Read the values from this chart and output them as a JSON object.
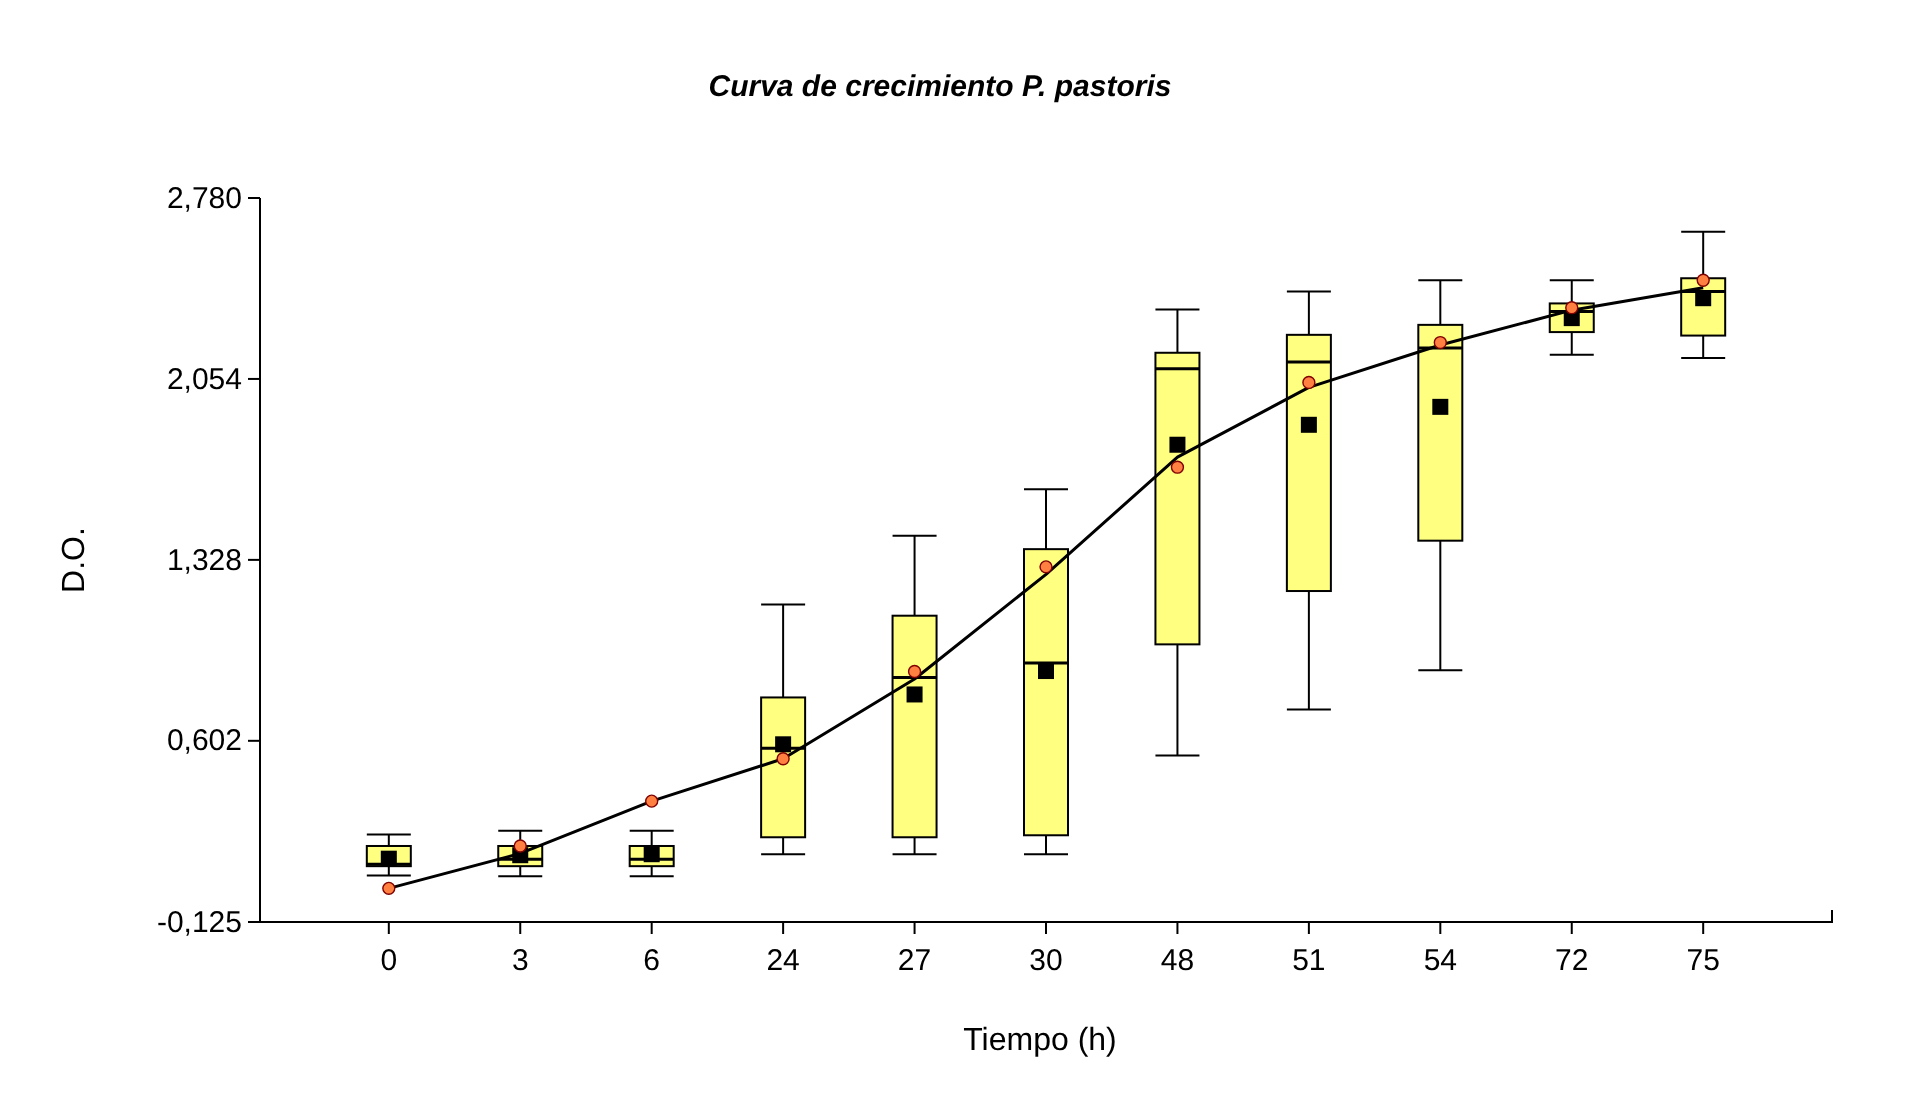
{
  "chart_data": {
    "type": "box",
    "title": "Curva de crecimiento P. pastoris",
    "xlabel": "Tiempo (h)",
    "ylabel": "D.O.",
    "categories": [
      "0",
      "3",
      "6",
      "24",
      "27",
      "30",
      "48",
      "51",
      "54",
      "72",
      "75"
    ],
    "color": "#ffff80",
    "boxes": [
      {
        "low": 0.062,
        "q1": 0.099,
        "median": 0.107,
        "q3": 0.18,
        "high": 0.226,
        "mean": 0.129
      },
      {
        "low": 0.059,
        "q1": 0.099,
        "median": 0.127,
        "q3": 0.18,
        "high": 0.241,
        "mean": 0.143
      },
      {
        "low": 0.059,
        "q1": 0.099,
        "median": 0.127,
        "q3": 0.18,
        "high": 0.241,
        "mean": 0.147
      },
      {
        "low": 0.147,
        "q1": 0.215,
        "median": 0.572,
        "q3": 0.776,
        "high": 1.149,
        "mean": 0.588
      },
      {
        "low": 0.147,
        "q1": 0.215,
        "median": 0.856,
        "q3": 1.104,
        "high": 1.425,
        "mean": 0.788
      },
      {
        "low": 0.147,
        "q1": 0.223,
        "median": 0.914,
        "q3": 1.371,
        "high": 1.611,
        "mean": 0.882
      },
      {
        "low": 0.543,
        "q1": 0.989,
        "median": 2.095,
        "q3": 2.159,
        "high": 2.333,
        "mean": 1.79
      },
      {
        "low": 0.728,
        "q1": 1.203,
        "median": 2.122,
        "q3": 2.231,
        "high": 2.405,
        "mean": 1.87
      },
      {
        "low": 0.885,
        "q1": 1.405,
        "median": 2.178,
        "q3": 2.271,
        "high": 2.45,
        "mean": 1.942
      },
      {
        "low": 2.151,
        "q1": 2.242,
        "median": 2.325,
        "q3": 2.357,
        "high": 2.45,
        "mean": 2.298
      },
      {
        "low": 2.138,
        "q1": 2.228,
        "median": 2.405,
        "q3": 2.458,
        "high": 2.645,
        "mean": 2.378
      }
    ],
    "series": [
      {
        "type": "line",
        "color": "#000000",
        "marker": "none",
        "values": [
          0.01,
          0.15,
          0.36,
          0.53,
          0.85,
          1.27,
          1.74,
          2.02,
          2.19,
          2.33,
          2.42
        ]
      },
      {
        "type": "scatter",
        "color": "#ff8040",
        "marker": "circle",
        "values": [
          0.01,
          0.18,
          0.36,
          0.53,
          0.88,
          1.3,
          1.7,
          2.04,
          2.2,
          2.34,
          2.45
        ]
      }
    ],
    "ylim": [
      -0.125,
      2.78
    ],
    "yticks": [
      {
        "value": -0.125,
        "label": "-0,125"
      },
      {
        "value": 0.602,
        "label": "0,602"
      },
      {
        "value": 1.328,
        "label": "1,328"
      },
      {
        "value": 2.054,
        "label": "2,054"
      },
      {
        "value": 2.78,
        "label": "2,780"
      }
    ],
    "grid": false
  }
}
